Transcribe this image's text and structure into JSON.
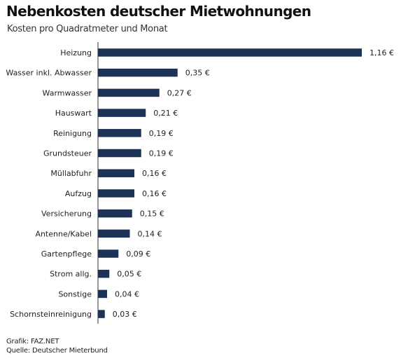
{
  "chart_data": {
    "type": "bar",
    "orientation": "horizontal",
    "title": "Nebenkosten deutscher Mietwohnungen",
    "subtitle": "Kosten pro Quadratmeter und Monat",
    "categories": [
      "Heizung",
      "Wasser inkl. Abwasser",
      "Warmwasser",
      "Hauswart",
      "Reinigung",
      "Grundsteuer",
      "Müllabfuhr",
      "Aufzug",
      "Versicherung",
      "Antenne/Kabel",
      "Gartenpflege",
      "Strom allg.",
      "Sonstige",
      "Schornsteinreinigung"
    ],
    "values": [
      1.16,
      0.35,
      0.27,
      0.21,
      0.19,
      0.19,
      0.16,
      0.16,
      0.15,
      0.14,
      0.09,
      0.05,
      0.04,
      0.03
    ],
    "value_labels": [
      "1,16 €",
      "0,35 €",
      "0,27 €",
      "0,21 €",
      "0,19 €",
      "0,19 €",
      "0,16 €",
      "0,16 €",
      "0,15 €",
      "0,14 €",
      "0,09 €",
      "0,05 €",
      "0,04 €",
      "0,03 €"
    ],
    "xlim": [
      0,
      1.16
    ],
    "bar_color": "#1c3257",
    "axis_color": "#333333",
    "grid": false,
    "legend": "none"
  },
  "footer": {
    "graphic": "Grafik: FAZ.NET",
    "source": "Quelle: Deutscher Mieterbund"
  }
}
